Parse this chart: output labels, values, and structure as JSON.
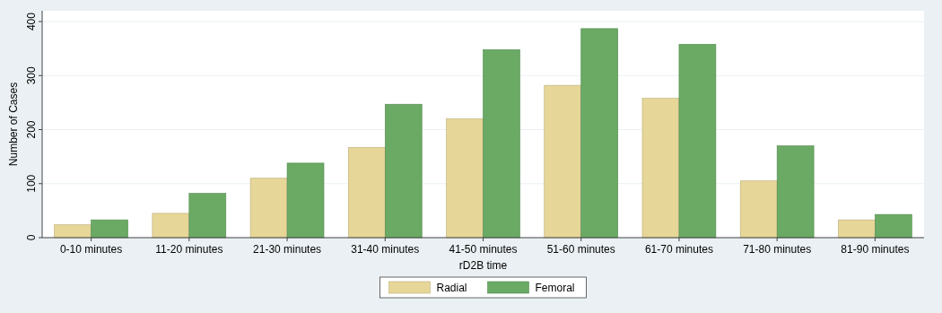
{
  "chart_data": {
    "type": "bar",
    "xlabel": "rD2B time",
    "ylabel": "Number of Cases",
    "categories": [
      "0-10 minutes",
      "11-20 minutes",
      "21-30 minutes",
      "31-40 minutes",
      "41-50 minutes",
      "51-60 minutes",
      "61-70 minutes",
      "71-80 minutes",
      "81-90 minutes"
    ],
    "series": [
      {
        "name": "Radial",
        "color": "#e6d698",
        "values": [
          24,
          45,
          110,
          167,
          220,
          282,
          258,
          105,
          33
        ]
      },
      {
        "name": "Femoral",
        "color": "#6aaa64",
        "values": [
          33,
          82,
          138,
          247,
          348,
          387,
          358,
          170,
          43
        ]
      }
    ],
    "ylim": [
      0,
      420
    ],
    "yticks": [
      0,
      100,
      200,
      300,
      400
    ],
    "grid": "y",
    "legend": "bottom"
  }
}
